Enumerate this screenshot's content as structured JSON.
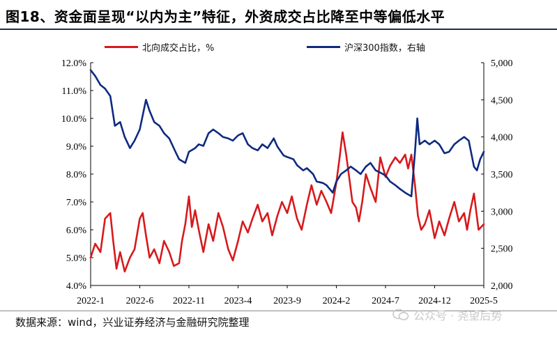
{
  "title": "图18、资金面呈现“以内为主”特征，外资成交占比降至中等偏低水平",
  "source": "数据来源：wind，兴业证券经济与金融研究院整理",
  "watermark": "公众号 · 尧望后势",
  "colors": {
    "north": "#d7191c",
    "hs300": "#0d2a80",
    "axis": "#000000",
    "title_rule": "#1f2a5a"
  },
  "chart_data": {
    "type": "line",
    "x_tick_labels": [
      "2022-1",
      "2022-6",
      "2022-11",
      "2023-4",
      "2023-9",
      "2024-2",
      "2024-7",
      "2024-12",
      "2025-5"
    ],
    "x_range": [
      "2022-01",
      "2025-05"
    ],
    "y_left": {
      "ticks": [
        "4.0%",
        "5.0%",
        "6.0%",
        "7.0%",
        "8.0%",
        "9.0%",
        "10.0%",
        "11.0%",
        "12.0%"
      ],
      "ylim": [
        4,
        12
      ]
    },
    "y_right": {
      "ticks": [
        "2,000",
        "2,500",
        "3,000",
        "3,500",
        "4,000",
        "4,500",
        "5,000"
      ],
      "ylim": [
        2000,
        5000
      ]
    },
    "legend_position": "top",
    "series": [
      {
        "name": "北向成交占比，%",
        "axis": "left",
        "values": [
          [
            "2022-01",
            5.0
          ],
          [
            "2022-01-15",
            5.5
          ],
          [
            "2022-02",
            5.2
          ],
          [
            "2022-02-15",
            6.4
          ],
          [
            "2022-03",
            6.6
          ],
          [
            "2022-03-10",
            5.6
          ],
          [
            "2022-03-20",
            4.6
          ],
          [
            "2022-04",
            5.2
          ],
          [
            "2022-04-15",
            4.5
          ],
          [
            "2022-05",
            5.0
          ],
          [
            "2022-05-15",
            5.3
          ],
          [
            "2022-06",
            6.4
          ],
          [
            "2022-06-10",
            6.6
          ],
          [
            "2022-06-20",
            5.8
          ],
          [
            "2022-07",
            5.0
          ],
          [
            "2022-07-15",
            5.3
          ],
          [
            "2022-08",
            4.8
          ],
          [
            "2022-08-15",
            5.6
          ],
          [
            "2022-09",
            5.2
          ],
          [
            "2022-09-15",
            4.7
          ],
          [
            "2022-10",
            4.8
          ],
          [
            "2022-10-10",
            5.6
          ],
          [
            "2022-10-20",
            6.2
          ],
          [
            "2022-11",
            7.2
          ],
          [
            "2022-11-10",
            6.1
          ],
          [
            "2022-11-20",
            6.7
          ],
          [
            "2022-12",
            6.0
          ],
          [
            "2022-12-15",
            5.2
          ],
          [
            "2023-01",
            6.2
          ],
          [
            "2023-01-15",
            5.6
          ],
          [
            "2023-02",
            6.6
          ],
          [
            "2023-02-15",
            6.1
          ],
          [
            "2023-03",
            5.3
          ],
          [
            "2023-03-15",
            4.9
          ],
          [
            "2023-04",
            5.6
          ],
          [
            "2023-04-15",
            6.3
          ],
          [
            "2023-05",
            5.9
          ],
          [
            "2023-05-15",
            6.4
          ],
          [
            "2023-06",
            6.9
          ],
          [
            "2023-06-15",
            6.3
          ],
          [
            "2023-07",
            6.6
          ],
          [
            "2023-07-15",
            5.8
          ],
          [
            "2023-08",
            6.5
          ],
          [
            "2023-08-15",
            7.0
          ],
          [
            "2023-09",
            6.6
          ],
          [
            "2023-09-15",
            7.2
          ],
          [
            "2023-10",
            6.4
          ],
          [
            "2023-10-15",
            6.0
          ],
          [
            "2023-11",
            6.9
          ],
          [
            "2023-11-15",
            7.6
          ],
          [
            "2023-12",
            6.9
          ],
          [
            "2023-12-15",
            7.4
          ],
          [
            "2024-01",
            7.0
          ],
          [
            "2024-01-15",
            6.6
          ],
          [
            "2024-02",
            7.7
          ],
          [
            "2024-02-10",
            8.5
          ],
          [
            "2024-02-20",
            9.5
          ],
          [
            "2024-03",
            8.7
          ],
          [
            "2024-03-10",
            7.9
          ],
          [
            "2024-03-20",
            7.0
          ],
          [
            "2024-04",
            6.8
          ],
          [
            "2024-04-10",
            6.3
          ],
          [
            "2024-04-20",
            7.0
          ],
          [
            "2024-05",
            8.0
          ],
          [
            "2024-05-15",
            7.5
          ],
          [
            "2024-06",
            7.0
          ],
          [
            "2024-06-15",
            8.6
          ],
          [
            "2024-07",
            7.9
          ],
          [
            "2024-07-15",
            8.3
          ],
          [
            "2024-08",
            8.6
          ],
          [
            "2024-08-15",
            8.4
          ],
          [
            "2024-09",
            8.7
          ],
          [
            "2024-09-10",
            8.2
          ],
          [
            "2024-09-20",
            8.7
          ],
          [
            "2024-10",
            7.6
          ],
          [
            "2024-10-10",
            6.5
          ],
          [
            "2024-10-20",
            6.0
          ],
          [
            "2024-11",
            6.2
          ],
          [
            "2024-11-15",
            6.7
          ],
          [
            "2024-12",
            5.7
          ],
          [
            "2024-12-15",
            6.3
          ],
          [
            "2025-01",
            5.8
          ],
          [
            "2025-01-15",
            6.4
          ],
          [
            "2025-02",
            7.0
          ],
          [
            "2025-02-15",
            6.3
          ],
          [
            "2025-03",
            6.6
          ],
          [
            "2025-03-10",
            6.0
          ],
          [
            "2025-03-20",
            6.7
          ],
          [
            "2025-04",
            7.3
          ],
          [
            "2025-04-15",
            6.0
          ],
          [
            "2025-05",
            6.2
          ]
        ]
      },
      {
        "name": "沪深300指数，右轴",
        "axis": "right",
        "values": [
          [
            "2022-01",
            4900
          ],
          [
            "2022-01-15",
            4820
          ],
          [
            "2022-02",
            4700
          ],
          [
            "2022-02-15",
            4650
          ],
          [
            "2022-03",
            4550
          ],
          [
            "2022-03-15",
            4150
          ],
          [
            "2022-04",
            4200
          ],
          [
            "2022-04-15",
            4000
          ],
          [
            "2022-05",
            3850
          ],
          [
            "2022-05-15",
            3950
          ],
          [
            "2022-06",
            4100
          ],
          [
            "2022-06-20",
            4500
          ],
          [
            "2022-07",
            4350
          ],
          [
            "2022-07-15",
            4200
          ],
          [
            "2022-08",
            4150
          ],
          [
            "2022-08-15",
            4050
          ],
          [
            "2022-09",
            3980
          ],
          [
            "2022-09-20",
            3800
          ],
          [
            "2022-10",
            3700
          ],
          [
            "2022-10-20",
            3650
          ],
          [
            "2022-11",
            3800
          ],
          [
            "2022-11-20",
            3850
          ],
          [
            "2022-12",
            3900
          ],
          [
            "2022-12-15",
            3880
          ],
          [
            "2023-01",
            4050
          ],
          [
            "2023-01-15",
            4100
          ],
          [
            "2023-02",
            4050
          ],
          [
            "2023-02-15",
            4000
          ],
          [
            "2023-03",
            3980
          ],
          [
            "2023-03-15",
            3950
          ],
          [
            "2023-04",
            4020
          ],
          [
            "2023-04-15",
            4050
          ],
          [
            "2023-05",
            3900
          ],
          [
            "2023-05-15",
            3850
          ],
          [
            "2023-06",
            3820
          ],
          [
            "2023-06-15",
            3900
          ],
          [
            "2023-07",
            3850
          ],
          [
            "2023-07-20",
            3980
          ],
          [
            "2023-08",
            3870
          ],
          [
            "2023-08-20",
            3750
          ],
          [
            "2023-09",
            3730
          ],
          [
            "2023-09-20",
            3700
          ],
          [
            "2023-10",
            3620
          ],
          [
            "2023-10-20",
            3550
          ],
          [
            "2023-11",
            3580
          ],
          [
            "2023-11-20",
            3500
          ],
          [
            "2023-12",
            3400
          ],
          [
            "2023-12-20",
            3380
          ],
          [
            "2024-01",
            3350
          ],
          [
            "2024-01-20",
            3250
          ],
          [
            "2024-02",
            3400
          ],
          [
            "2024-02-15",
            3500
          ],
          [
            "2024-03",
            3550
          ],
          [
            "2024-03-15",
            3600
          ],
          [
            "2024-04",
            3550
          ],
          [
            "2024-04-15",
            3500
          ],
          [
            "2024-05",
            3600
          ],
          [
            "2024-05-15",
            3650
          ],
          [
            "2024-06",
            3550
          ],
          [
            "2024-06-15",
            3520
          ],
          [
            "2024-07",
            3480
          ],
          [
            "2024-07-15",
            3400
          ],
          [
            "2024-08",
            3350
          ],
          [
            "2024-08-15",
            3300
          ],
          [
            "2024-09",
            3250
          ],
          [
            "2024-09-20",
            3200
          ],
          [
            "2024-10",
            3800
          ],
          [
            "2024-10-08",
            4250
          ],
          [
            "2024-10-15",
            3900
          ],
          [
            "2024-11",
            3950
          ],
          [
            "2024-11-15",
            3900
          ],
          [
            "2024-12",
            3950
          ],
          [
            "2024-12-15",
            3900
          ],
          [
            "2025-01",
            3780
          ],
          [
            "2025-01-15",
            3800
          ],
          [
            "2025-02",
            3900
          ],
          [
            "2025-02-15",
            3950
          ],
          [
            "2025-03",
            4000
          ],
          [
            "2025-03-15",
            3950
          ],
          [
            "2025-04",
            3600
          ],
          [
            "2025-04-10",
            3550
          ],
          [
            "2025-04-20",
            3700
          ],
          [
            "2025-05",
            3800
          ]
        ]
      }
    ]
  }
}
